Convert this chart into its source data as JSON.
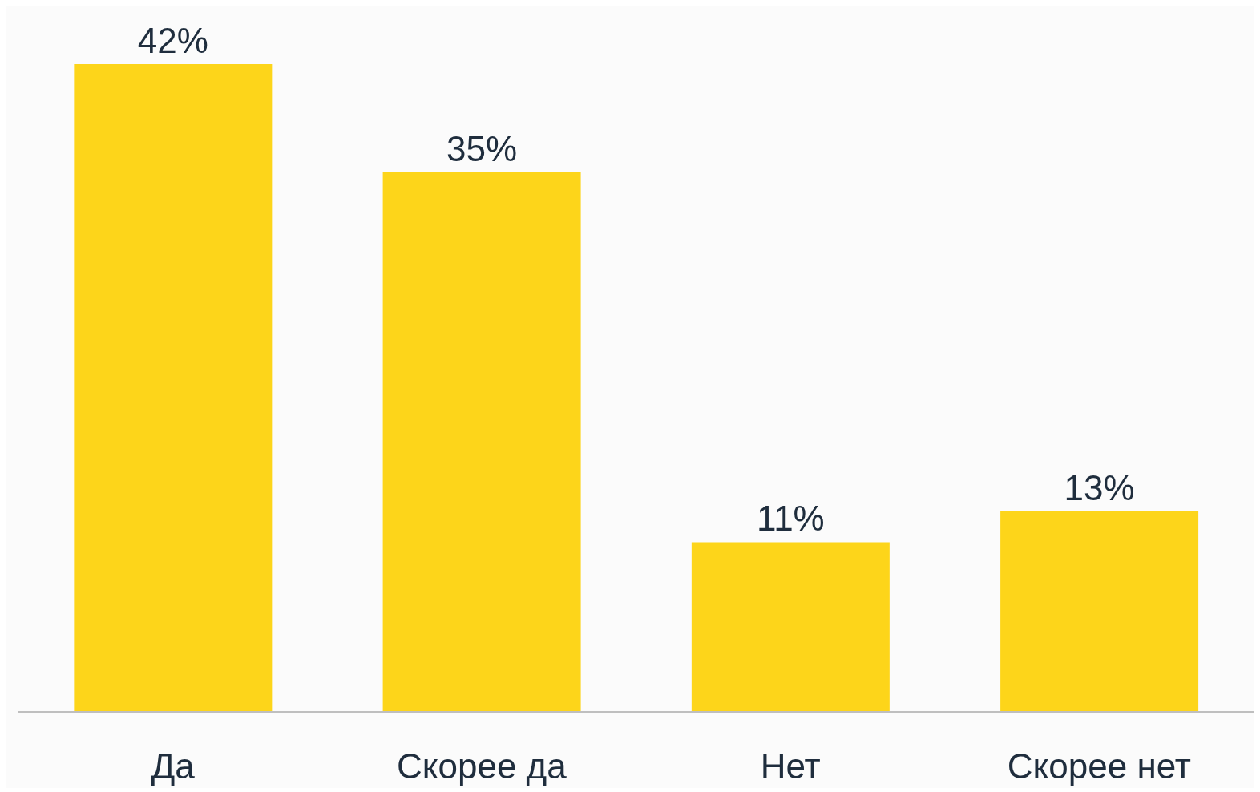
{
  "chart_data": {
    "type": "bar",
    "categories": [
      "Да",
      "Скорее да",
      "Нет",
      "Скорее нет"
    ],
    "values": [
      42,
      35,
      11,
      13
    ],
    "color": "#fdd51a",
    "value_labels": [
      "42%",
      "35%",
      "11%",
      "13%"
    ]
  }
}
